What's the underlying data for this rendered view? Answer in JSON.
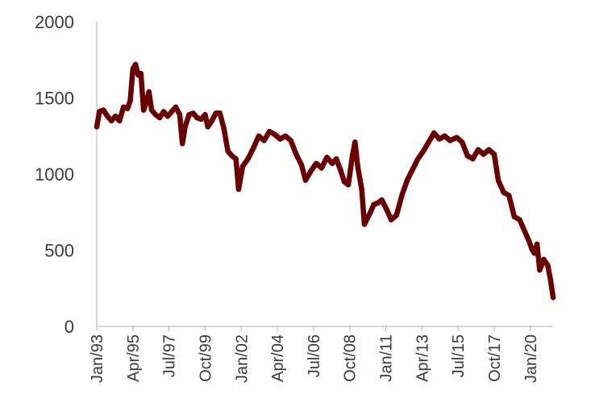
{
  "chart_data": {
    "type": "line",
    "title": "",
    "xlabel": "",
    "ylabel": "",
    "ylim": [
      0,
      2000
    ],
    "yticks": [
      0,
      500,
      1000,
      1500,
      2000
    ],
    "xticks": [
      "Jan/93",
      "Apr/95",
      "Jul/97",
      "Oct/99",
      "Jan/02",
      "Apr/04",
      "Jul/06",
      "Oct/08",
      "Jan/11",
      "Apr/13",
      "Jul/15",
      "Oct/17",
      "Jan/20"
    ],
    "x_range": [
      "1993-01",
      "2021-06"
    ],
    "legend": "none",
    "grid": false,
    "line_color": "#6b0000",
    "series": [
      {
        "points": [
          [
            "1993-01",
            1310
          ],
          [
            "1993-03",
            1410
          ],
          [
            "1993-06",
            1420
          ],
          [
            "1993-09",
            1380
          ],
          [
            "1993-12",
            1350
          ],
          [
            "1994-03",
            1380
          ],
          [
            "1994-06",
            1350
          ],
          [
            "1994-09",
            1440
          ],
          [
            "1994-12",
            1430
          ],
          [
            "1995-02",
            1480
          ],
          [
            "1995-04",
            1690
          ],
          [
            "1995-06",
            1720
          ],
          [
            "1995-08",
            1650
          ],
          [
            "1995-10",
            1660
          ],
          [
            "1995-12",
            1420
          ],
          [
            "1996-02",
            1470
          ],
          [
            "1996-04",
            1540
          ],
          [
            "1996-06",
            1420
          ],
          [
            "1996-09",
            1390
          ],
          [
            "1996-12",
            1370
          ],
          [
            "1997-03",
            1410
          ],
          [
            "1997-06",
            1380
          ],
          [
            "1997-09",
            1410
          ],
          [
            "1997-12",
            1440
          ],
          [
            "1998-03",
            1390
          ],
          [
            "1998-05",
            1200
          ],
          [
            "1998-07",
            1310
          ],
          [
            "1998-10",
            1390
          ],
          [
            "1999-01",
            1400
          ],
          [
            "1999-04",
            1370
          ],
          [
            "1999-07",
            1360
          ],
          [
            "1999-10",
            1390
          ],
          [
            "1999-12",
            1310
          ],
          [
            "2000-03",
            1350
          ],
          [
            "2000-06",
            1400
          ],
          [
            "2000-09",
            1400
          ],
          [
            "2000-12",
            1300
          ],
          [
            "2001-03",
            1150
          ],
          [
            "2001-06",
            1120
          ],
          [
            "2001-09",
            1100
          ],
          [
            "2001-11",
            900
          ],
          [
            "2002-02",
            1050
          ],
          [
            "2002-06",
            1100
          ],
          [
            "2002-10",
            1170
          ],
          [
            "2003-02",
            1250
          ],
          [
            "2003-06",
            1220
          ],
          [
            "2003-10",
            1280
          ],
          [
            "2004-02",
            1260
          ],
          [
            "2004-06",
            1230
          ],
          [
            "2004-10",
            1250
          ],
          [
            "2005-02",
            1220
          ],
          [
            "2005-06",
            1130
          ],
          [
            "2005-10",
            1060
          ],
          [
            "2006-01",
            960
          ],
          [
            "2006-05",
            1020
          ],
          [
            "2006-09",
            1070
          ],
          [
            "2007-01",
            1040
          ],
          [
            "2007-05",
            1110
          ],
          [
            "2007-09",
            1070
          ],
          [
            "2007-12",
            1100
          ],
          [
            "2008-03",
            1030
          ],
          [
            "2008-06",
            950
          ],
          [
            "2008-09",
            930
          ],
          [
            "2008-12",
            1120
          ],
          [
            "2009-02",
            1210
          ],
          [
            "2009-04",
            1050
          ],
          [
            "2009-07",
            900
          ],
          [
            "2009-09",
            670
          ],
          [
            "2010-01",
            740
          ],
          [
            "2010-04",
            800
          ],
          [
            "2010-07",
            810
          ],
          [
            "2010-10",
            830
          ],
          [
            "2011-02",
            760
          ],
          [
            "2011-05",
            700
          ],
          [
            "2011-09",
            730
          ],
          [
            "2012-01",
            860
          ],
          [
            "2012-05",
            960
          ],
          [
            "2012-09",
            1030
          ],
          [
            "2013-01",
            1100
          ],
          [
            "2013-05",
            1150
          ],
          [
            "2013-09",
            1210
          ],
          [
            "2014-01",
            1270
          ],
          [
            "2014-05",
            1230
          ],
          [
            "2014-09",
            1250
          ],
          [
            "2015-01",
            1220
          ],
          [
            "2015-06",
            1240
          ],
          [
            "2015-10",
            1210
          ],
          [
            "2016-02",
            1120
          ],
          [
            "2016-06",
            1100
          ],
          [
            "2016-10",
            1160
          ],
          [
            "2017-02",
            1130
          ],
          [
            "2017-06",
            1160
          ],
          [
            "2017-10",
            1130
          ],
          [
            "2018-01",
            960
          ],
          [
            "2018-05",
            880
          ],
          [
            "2018-09",
            860
          ],
          [
            "2019-01",
            720
          ],
          [
            "2019-05",
            700
          ],
          [
            "2019-09",
            620
          ],
          [
            "2019-12",
            560
          ],
          [
            "2020-02",
            510
          ],
          [
            "2020-04",
            480
          ],
          [
            "2020-06",
            540
          ],
          [
            "2020-08",
            370
          ],
          [
            "2020-11",
            440
          ],
          [
            "2021-02",
            400
          ],
          [
            "2021-04",
            310
          ],
          [
            "2021-06",
            190
          ]
        ]
      }
    ]
  }
}
